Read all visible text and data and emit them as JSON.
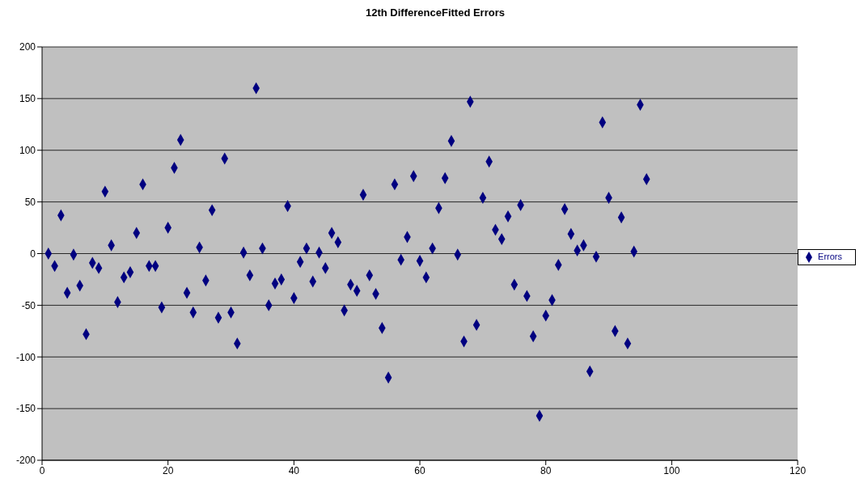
{
  "chart_data": {
    "type": "scatter",
    "title": "12th DifferenceFitted Errors",
    "x": [
      1,
      2,
      3,
      4,
      5,
      6,
      7,
      8,
      9,
      10,
      11,
      12,
      13,
      14,
      15,
      16,
      17,
      18,
      19,
      20,
      21,
      22,
      23,
      24,
      25,
      26,
      27,
      28,
      29,
      30,
      31,
      32,
      33,
      34,
      35,
      36,
      37,
      38,
      39,
      40,
      41,
      42,
      43,
      44,
      45,
      46,
      47,
      48,
      49,
      50,
      51,
      52,
      53,
      54,
      55,
      56,
      57,
      58,
      59,
      60,
      61,
      62,
      63,
      64,
      65,
      66,
      67,
      68,
      69,
      70,
      71,
      72,
      73,
      74,
      75,
      76,
      77,
      78,
      79,
      80,
      81,
      82,
      83,
      84,
      85,
      86,
      87,
      88,
      89,
      90,
      91,
      92,
      93,
      94,
      95,
      96
    ],
    "series": [
      {
        "name": "Errors",
        "color": "#000080",
        "values": [
          0,
          -12,
          37,
          -38,
          -1,
          -31,
          -78,
          -9,
          -14,
          60,
          8,
          -47,
          -23,
          -18,
          20,
          67,
          -12,
          -12,
          -52,
          25,
          83,
          110,
          -38,
          -57,
          6,
          -26,
          42,
          -62,
          92,
          -57,
          -87,
          1,
          -21,
          160,
          5,
          -50,
          -29,
          -25,
          46,
          -43,
          -8,
          5,
          -27,
          1,
          -14,
          20,
          11,
          -55,
          -30,
          -36,
          57,
          -21,
          -39,
          -72,
          -120,
          67,
          -6,
          16,
          75,
          -7,
          -23,
          5,
          44,
          73,
          109,
          -1,
          -85,
          147,
          -69,
          54,
          89,
          23,
          14,
          36,
          -30,
          47,
          -41,
          -80,
          -157,
          -60,
          -45,
          -11,
          43,
          19,
          3,
          8,
          -114,
          -3,
          127,
          54,
          -75,
          35,
          -87,
          2,
          144,
          72
        ]
      }
    ],
    "xlim": [
      0,
      120
    ],
    "xticks": [
      0,
      20,
      40,
      60,
      80,
      100,
      120
    ],
    "ylim": [
      -200,
      200
    ],
    "yticks": [
      -200,
      -150,
      -100,
      -50,
      0,
      50,
      100,
      150,
      200
    ],
    "grid": "y",
    "legend": "right",
    "marker": "diamond"
  }
}
